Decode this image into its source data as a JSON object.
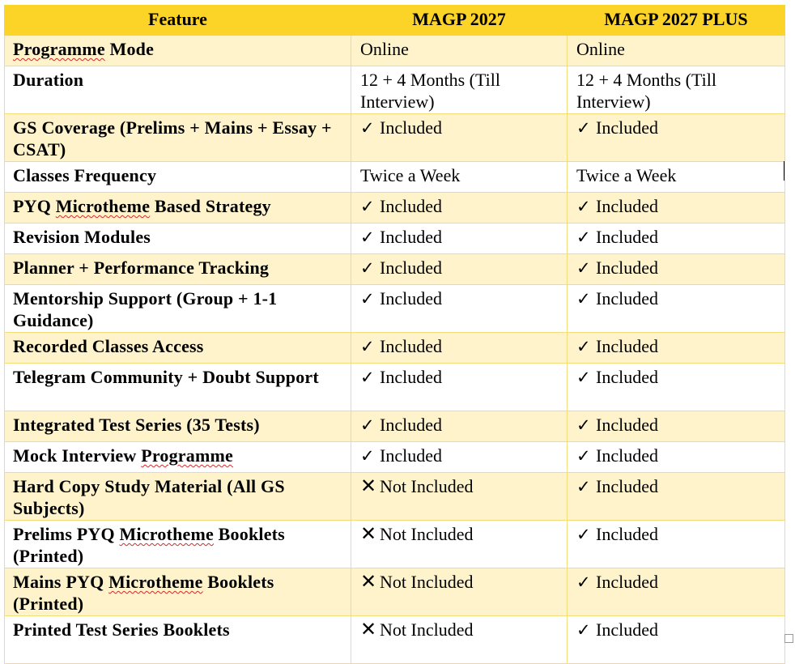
{
  "table": {
    "headers": [
      "Feature",
      "MAGP 2027",
      "MAGP 2027 PLUS"
    ],
    "rows": [
      {
        "feature": "Programme Mode",
        "squiggle": "Programme",
        "rest": " Mode",
        "c1": "Online",
        "c1_mark": "",
        "c2": "Online",
        "c2_mark": "",
        "tall": false
      },
      {
        "feature": "Duration",
        "c1": "12 + 4 Months (Till Interview)",
        "c1_mark": "",
        "c2": "12 + 4 Months (Till Interview)",
        "c2_mark": "",
        "tall": true
      },
      {
        "feature": "GS Coverage (Prelims + Mains + Essay + CSAT)",
        "c1": "Included",
        "c1_mark": "✓",
        "c2": "Included",
        "c2_mark": "✓",
        "tall": true
      },
      {
        "feature": "Classes Frequency",
        "c1": "Twice a Week",
        "c1_mark": "",
        "c2": "Twice a Week",
        "c2_mark": "",
        "tall": false
      },
      {
        "feature": "PYQ Microtheme Based Strategy",
        "c1": "Included",
        "c1_mark": "✓",
        "c2": "Included",
        "c2_mark": "✓",
        "tall": false
      },
      {
        "feature": "Revision Modules",
        "c1": "Included",
        "c1_mark": "✓",
        "c2": "Included",
        "c2_mark": "✓",
        "tall": false
      },
      {
        "feature": "Planner + Performance Tracking",
        "c1": "Included",
        "c1_mark": "✓",
        "c2": "Included",
        "c2_mark": "✓",
        "tall": false
      },
      {
        "feature": "Mentorship Support (Group + 1-1 Guidance)",
        "c1": "Included",
        "c1_mark": "✓",
        "c2": "Included",
        "c2_mark": "✓",
        "tall": true
      },
      {
        "feature": "Recorded Classes Access",
        "c1": "Included",
        "c1_mark": "✓",
        "c2": "Included",
        "c2_mark": "✓",
        "tall": false
      },
      {
        "feature": "Telegram Community + Doubt Support",
        "c1": "Included",
        "c1_mark": "✓",
        "c2": "Included",
        "c2_mark": "✓",
        "tall": true
      },
      {
        "feature": "Integrated Test Series (35 Tests)",
        "c1": "Included",
        "c1_mark": "✓",
        "c2": "Included",
        "c2_mark": "✓",
        "tall": false
      },
      {
        "feature": "Mock Interview Programme",
        "c1": "Included",
        "c1_mark": "✓",
        "c2": "Included",
        "c2_mark": "✓",
        "tall": false
      },
      {
        "feature": "Hard Copy Study Material (All GS Subjects)",
        "c1": "Not Included",
        "c1_mark": "✕",
        "c2": "Included",
        "c2_mark": "✓",
        "tall": true
      },
      {
        "feature": "Prelims PYQ Microtheme Booklets (Printed)",
        "c1": "Not Included",
        "c1_mark": "✕",
        "c2": "Included",
        "c2_mark": "✓",
        "tall": true
      },
      {
        "feature": "Mains PYQ Microtheme Booklets (Printed)",
        "c1": "Not Included",
        "c1_mark": "✕",
        "c2": "Included",
        "c2_mark": "✓",
        "tall": true
      },
      {
        "feature": "Printed Test Series Booklets",
        "c1": "Not Included",
        "c1_mark": "✕",
        "c2": "Included",
        "c2_mark": "✓",
        "tall": true
      }
    ]
  },
  "icons": {
    "check": "check-icon",
    "cross": "cross-icon"
  },
  "colors": {
    "header_bg": "#fbd427",
    "alt_row_bg": "#fff3cc",
    "border": "#f3dc7a",
    "spellcheck": "#d12b2b"
  }
}
